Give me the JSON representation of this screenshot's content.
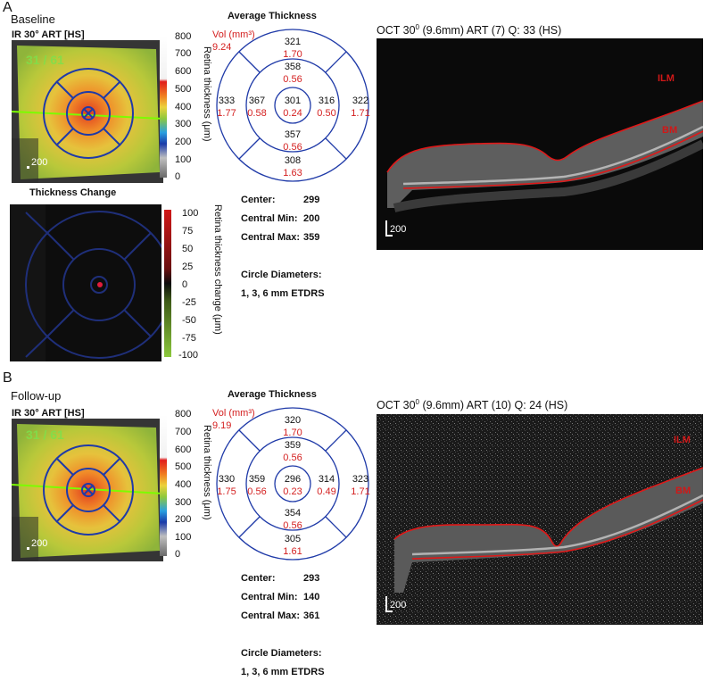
{
  "panels": [
    {
      "letter": "A",
      "title": "Baseline",
      "ir_label": "IR 30° ART [HS]",
      "quality": "31 / 61",
      "scale_label": "200",
      "colorbar_ticks": [
        "800",
        "700",
        "600",
        "500",
        "400",
        "300",
        "200",
        "100",
        "0"
      ],
      "colorbar_title": "Retina thickness (μm)",
      "change_title": "Thickness Change",
      "change_ticks": [
        "100",
        "75",
        "50",
        "25",
        "0",
        "-25",
        "-50",
        "-75",
        "-100"
      ],
      "change_colorbar_title": "Retina thickness change (μm)",
      "avg_title": "Average Thickness",
      "vol_label": "Vol (mm³)",
      "vol_value": "9.24",
      "etdrs": {
        "center": {
          "t": "301",
          "v": "0.24"
        },
        "inner_sup": {
          "t": "358",
          "v": "0.56"
        },
        "inner_inf": {
          "t": "357",
          "v": "0.56"
        },
        "inner_temp": {
          "t": "367",
          "v": "0.58"
        },
        "inner_nasal": {
          "t": "316",
          "v": "0.50"
        },
        "outer_sup": {
          "t": "321",
          "v": "1.70"
        },
        "outer_inf": {
          "t": "308",
          "v": "1.63"
        },
        "outer_temp": {
          "t": "333",
          "v": "1.77"
        },
        "outer_nasal": {
          "t": "322",
          "v": "1.71"
        }
      },
      "stats": [
        {
          "label": "Center:",
          "value": "299"
        },
        {
          "label": "Central Min:",
          "value": "200"
        },
        {
          "label": "Central Max:",
          "value": "359"
        }
      ],
      "diam_title": "Circle Diameters:",
      "diam_value": "1, 3, 6 mm ETDRS",
      "oct_title_pre": "OCT 30",
      "oct_title_sup": "0",
      "oct_title_post": " (9.6mm) ART (7) Q: 33 (HS)",
      "ilm": "ILM",
      "bm": "BM",
      "oct_scale": "200"
    },
    {
      "letter": "B",
      "title": "Follow-up",
      "ir_label": "IR 30° ART [HS]",
      "quality": "31 / 61",
      "scale_label": "200",
      "colorbar_ticks": [
        "800",
        "700",
        "600",
        "500",
        "400",
        "300",
        "200",
        "100",
        "0"
      ],
      "colorbar_title": "Retina thickness (μm)",
      "avg_title": "Average Thickness",
      "vol_label": "Vol (mm³)",
      "vol_value": "9.19",
      "etdrs": {
        "center": {
          "t": "296",
          "v": "0.23"
        },
        "inner_sup": {
          "t": "359",
          "v": "0.56"
        },
        "inner_inf": {
          "t": "354",
          "v": "0.56"
        },
        "inner_temp": {
          "t": "359",
          "v": "0.56"
        },
        "inner_nasal": {
          "t": "314",
          "v": "0.49"
        },
        "outer_sup": {
          "t": "320",
          "v": "1.70"
        },
        "outer_inf": {
          "t": "305",
          "v": "1.61"
        },
        "outer_temp": {
          "t": "330",
          "v": "1.75"
        },
        "outer_nasal": {
          "t": "323",
          "v": "1.71"
        }
      },
      "stats": [
        {
          "label": "Center:",
          "value": "293"
        },
        {
          "label": "Central Min:",
          "value": "140"
        },
        {
          "label": "Central Max:",
          "value": "361"
        }
      ],
      "diam_title": "Circle Diameters:",
      "diam_value": "1, 3, 6 mm ETDRS",
      "oct_title_pre": "OCT 30",
      "oct_title_sup": "0",
      "oct_title_post": " (9.6mm) ART (10) Q: 24 (HS)",
      "ilm": "ILM",
      "bm": "BM",
      "oct_scale": "200"
    }
  ],
  "colors": {
    "etdrs_grid": "#1f3aa8",
    "value_red": "#d42020",
    "ilm_line": "#e01818",
    "scan_line": "#7CFC00"
  }
}
